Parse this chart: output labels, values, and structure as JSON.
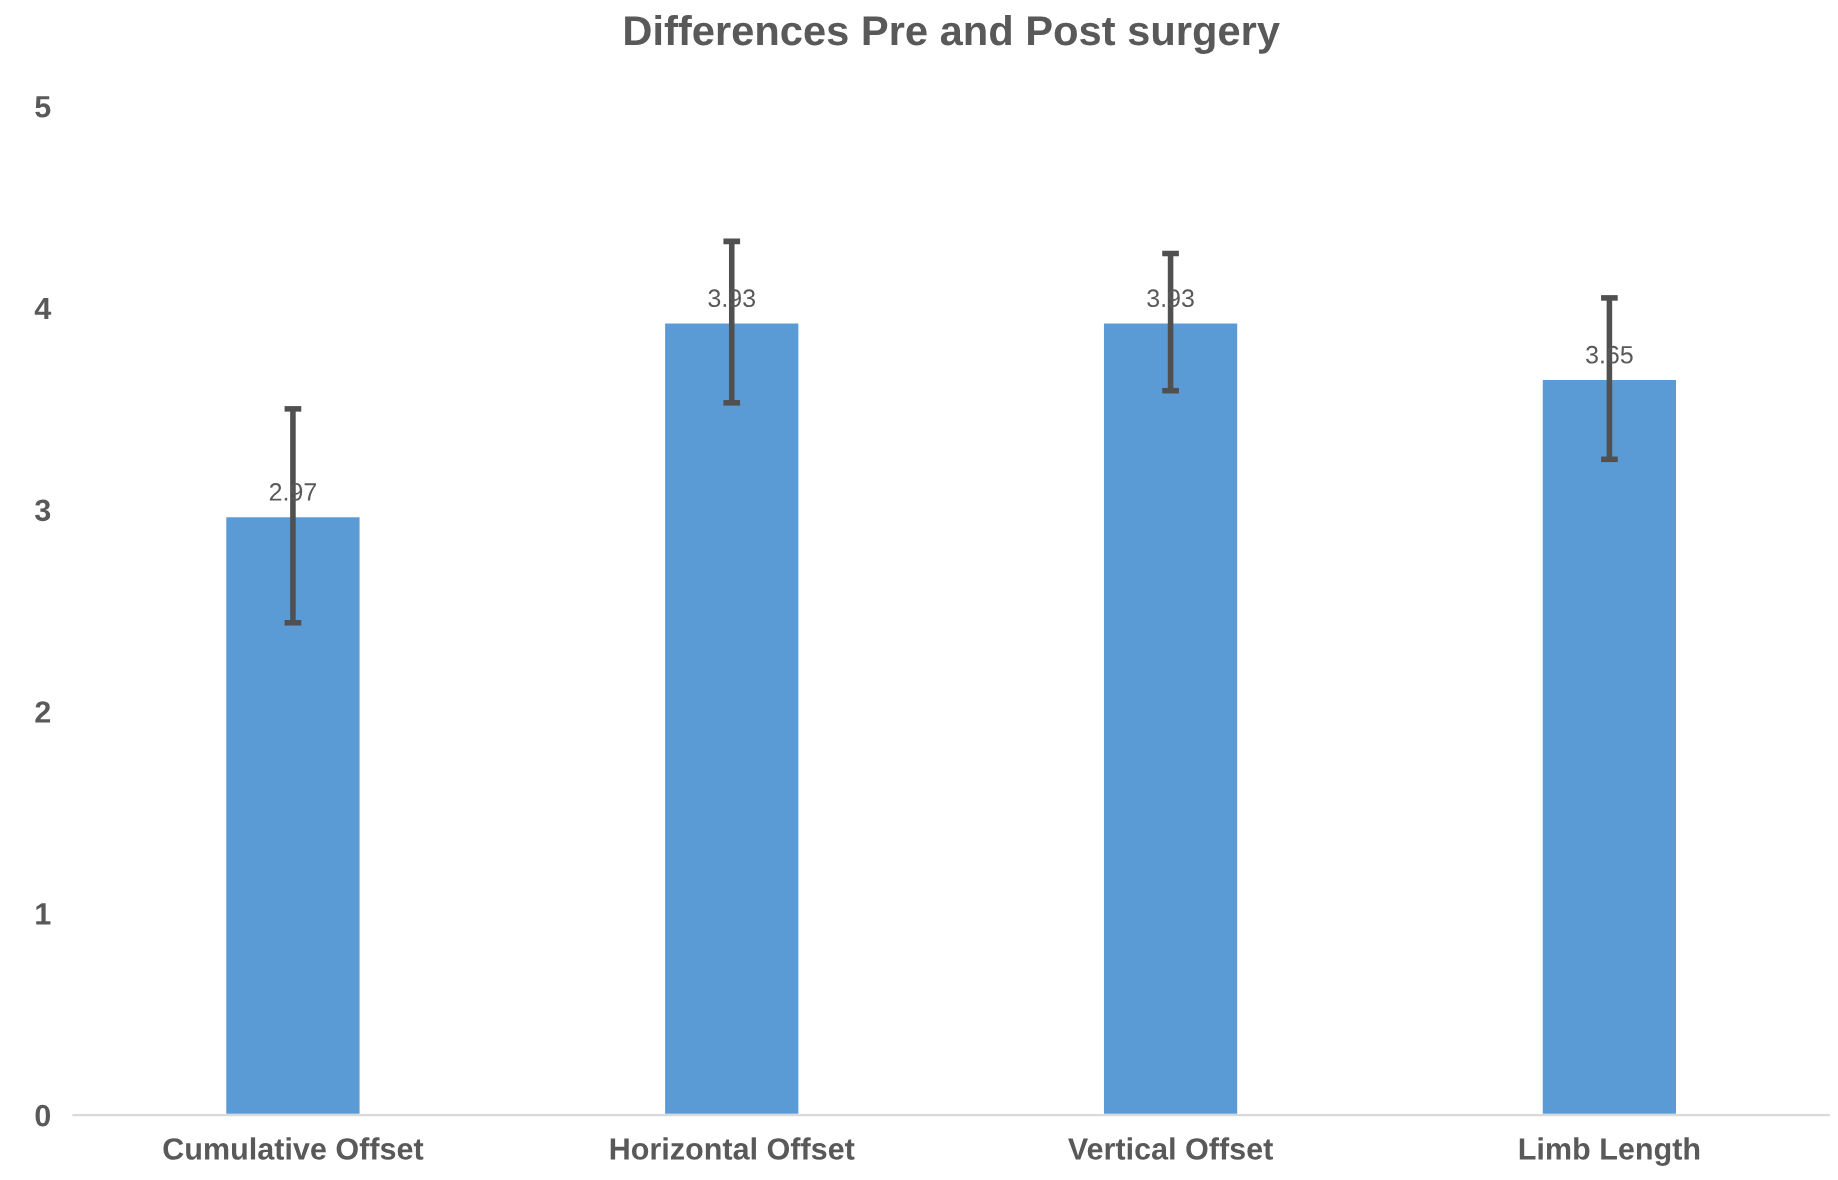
{
  "chart_data": {
    "type": "bar",
    "title": "Differences Pre and Post surgery",
    "categories": [
      "Cumulative Offset",
      "Horizontal Offset",
      "Vertical Offset",
      "Limb Length"
    ],
    "values": [
      2.97,
      3.93,
      3.93,
      3.65
    ],
    "errors": [
      0.53,
      0.4,
      0.34,
      0.4
    ],
    "color": "#5b9bd5",
    "ylim": [
      0,
      5
    ],
    "yticks": [
      0,
      1,
      2,
      3,
      4,
      5
    ],
    "grid": false,
    "data_labels": true
  }
}
